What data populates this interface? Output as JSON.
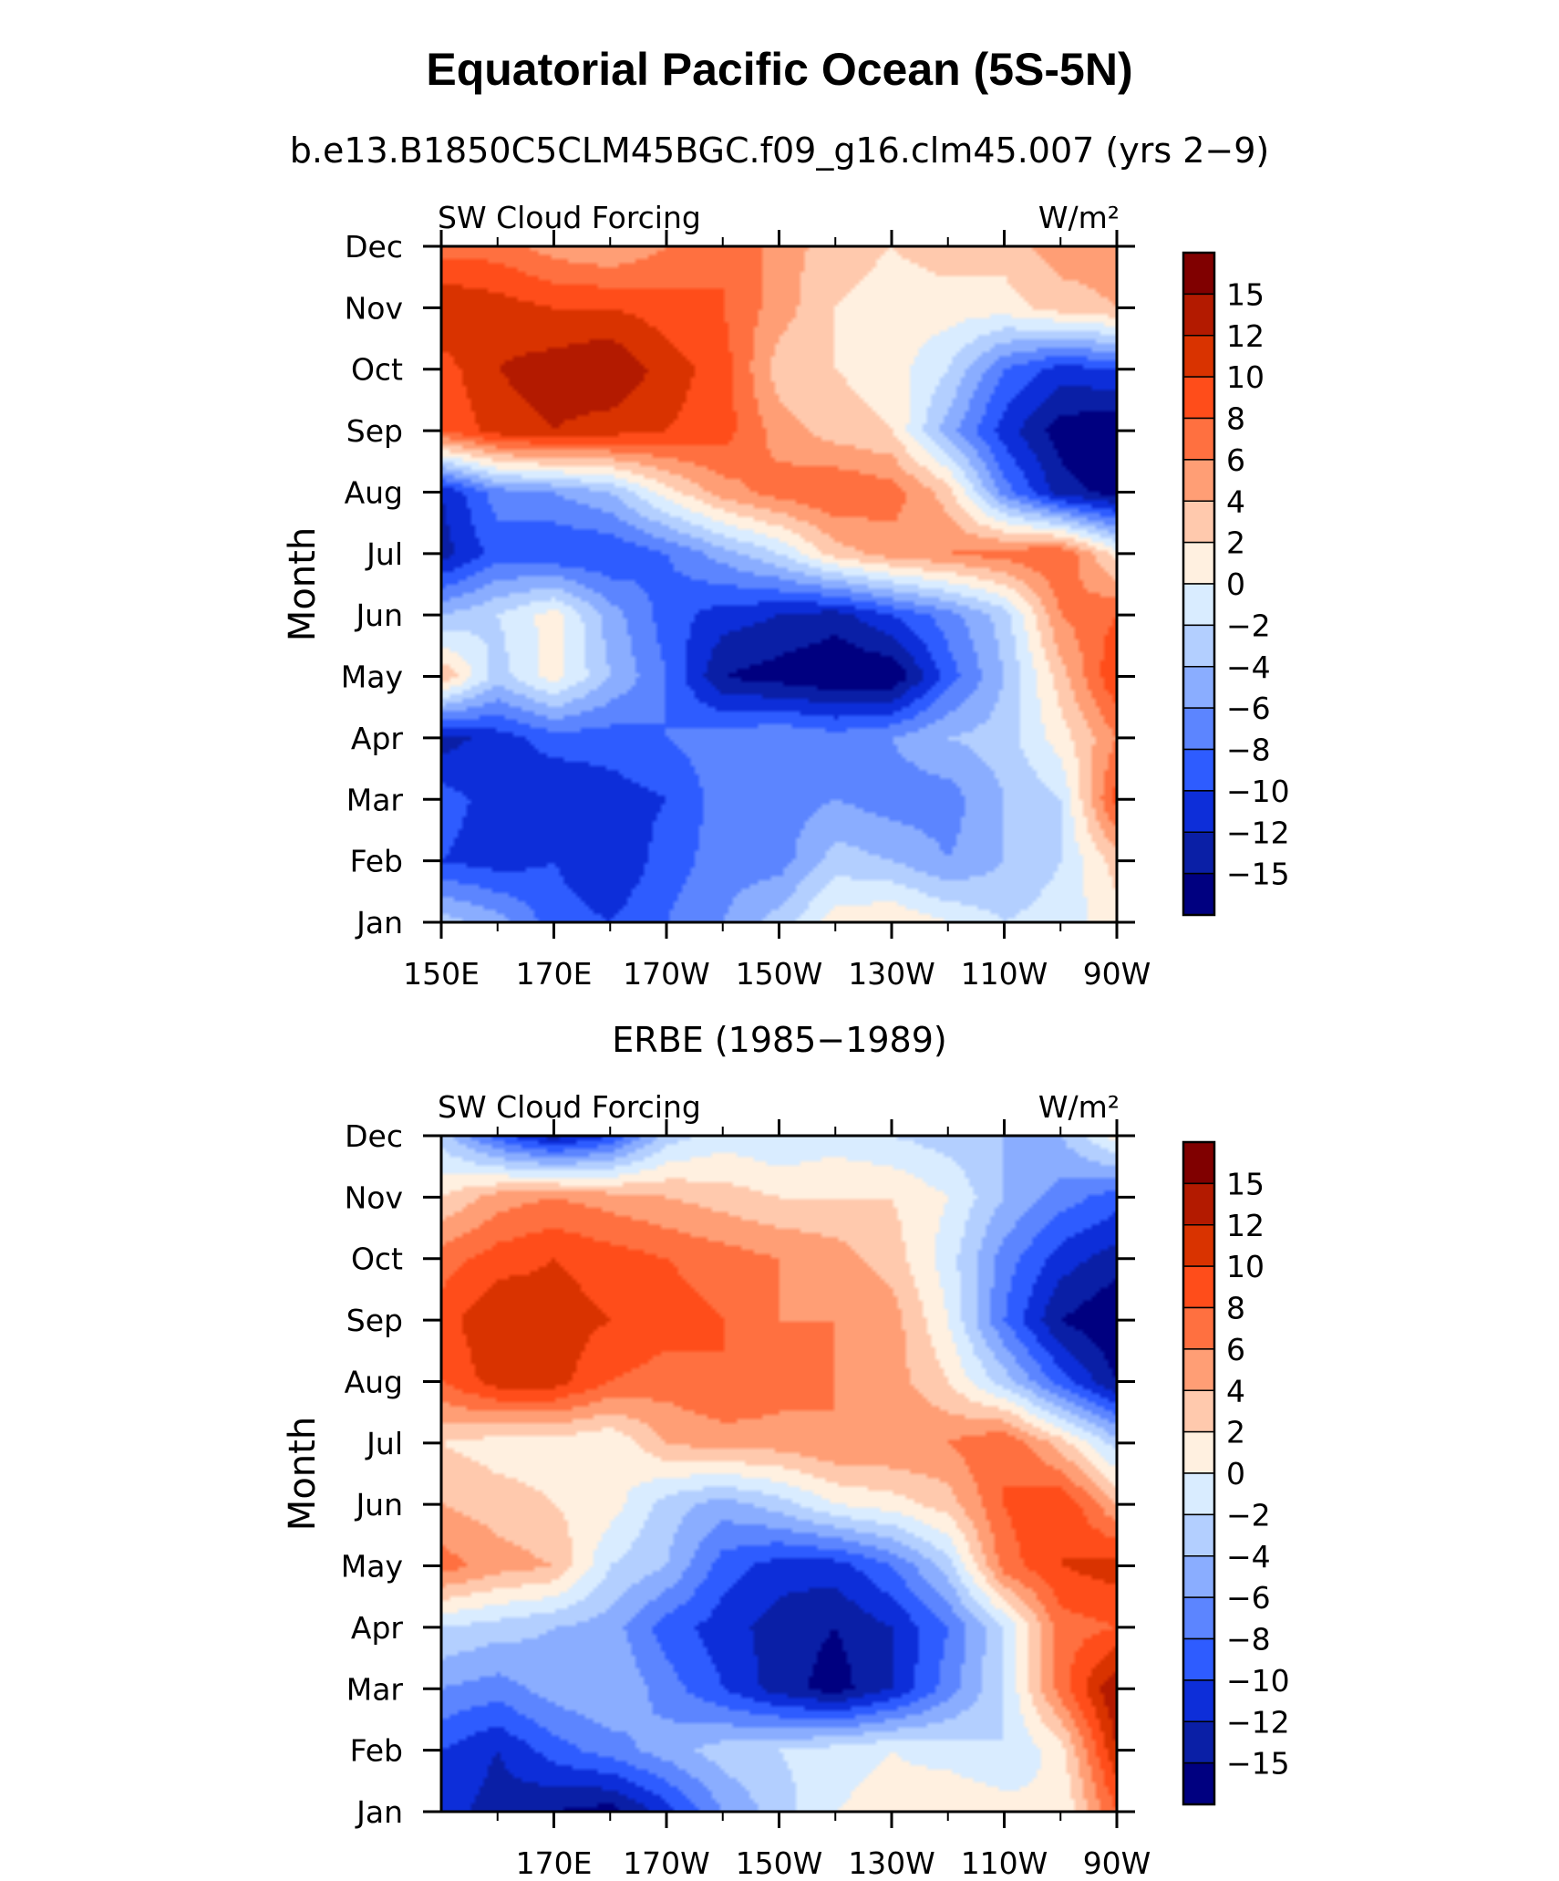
{
  "chart_data": {
    "type": "heatmap",
    "title": "Equatorial Pacific Ocean (5S-5N)",
    "colorbar": {
      "levels": [
        "15",
        "12",
        "10",
        "8",
        "6",
        "4",
        "2",
        "0",
        "−2",
        "−4",
        "−6",
        "−8",
        "−10",
        "−12",
        "−15"
      ],
      "colors": [
        "#800000",
        "#b31a00",
        "#d93300",
        "#ff4d1a",
        "#ff7040",
        "#ff9e75",
        "#ffc9ad",
        "#fff0e0",
        "#d9ecff",
        "#b3cfff",
        "#8aadff",
        "#5c85ff",
        "#2e5cff",
        "#0d2ed9",
        "#0a1fa6",
        "#000080"
      ]
    },
    "panels": [
      {
        "subtitle": "b.e13.B1850C5CLM45BGC.f09_g16.clm45.007 (yrs 2−9)",
        "left_string": "SW Cloud Forcing",
        "right_string": "W/m²",
        "ylabel": "Month",
        "months": [
          "Jan",
          "Feb",
          "Mar",
          "Apr",
          "May",
          "Jun",
          "Jul",
          "Aug",
          "Sep",
          "Oct",
          "Nov",
          "Dec"
        ],
        "x_tick_labels": [
          "150E",
          "170E",
          "170W",
          "150W",
          "130W",
          "110W",
          "90W"
        ],
        "x_range_deg": [
          150,
          270
        ],
        "field_note": "SW cloud forcing (W/m²), rows = Jan..Dec, columns = 150E..90W every 10 degrees",
        "grid": [
          [
            -2,
            -4,
            -8,
            -9,
            -7,
            -5,
            -2,
            2,
            3,
            1,
            -1,
            0,
            2
          ],
          [
            -9,
            -10,
            -9,
            -11,
            -8,
            -6,
            -6,
            -2,
            -3,
            -5,
            -3,
            -1,
            4
          ],
          [
            -8,
            -10,
            -11,
            -10,
            -9,
            -6,
            -6,
            -5,
            -6,
            -6,
            -3,
            -1,
            10
          ],
          [
            -12,
            -10,
            -8,
            -8,
            -7,
            -6,
            -5,
            -6,
            -5,
            -3,
            -2,
            2,
            7
          ],
          [
            5,
            -2,
            2,
            -3,
            -7,
            -13,
            -14,
            -15,
            -15,
            -8,
            -3,
            4,
            11
          ],
          [
            -3,
            -1,
            2,
            -4,
            -8,
            -10,
            -11,
            -12,
            -9,
            -6,
            -2,
            7,
            9
          ],
          [
            -12,
            -8,
            -9,
            -9,
            -7,
            -4,
            -1,
            4,
            6,
            7,
            8,
            9,
            2
          ],
          [
            -11,
            -6,
            -5,
            -3,
            2,
            6,
            8,
            9,
            8,
            4,
            -6,
            -12,
            -14
          ],
          [
            9,
            12,
            13,
            12,
            11,
            10,
            6,
            4,
            3,
            -4,
            -10,
            -14,
            -15
          ],
          [
            10,
            13,
            14,
            15,
            12,
            10,
            4,
            3,
            2,
            -1,
            -7,
            -10,
            -9
          ],
          [
            13,
            12,
            11,
            11,
            10,
            9,
            6,
            3,
            2,
            2,
            2,
            4,
            5
          ],
          [
            8,
            8,
            6,
            5,
            7,
            9,
            6,
            4,
            3,
            4,
            4,
            6,
            6
          ]
        ]
      },
      {
        "subtitle": "ERBE (1985−1989)",
        "left_string": "SW Cloud Forcing",
        "right_string": "W/m²",
        "ylabel": "Month",
        "months": [
          "Jan",
          "Feb",
          "Mar",
          "Apr",
          "May",
          "Jun",
          "Jul",
          "Aug",
          "Sep",
          "Oct",
          "Nov",
          "Dec"
        ],
        "x_tick_labels": [
          "170E",
          "170W",
          "150W",
          "130W",
          "110W",
          "90W"
        ],
        "x_range_deg": [
          150,
          270
        ],
        "field_note": "SW cloud forcing (W/m²), rows = Jan..Dec, columns = 150E..90W every 10 degrees",
        "grid": [
          [
            -10,
            -12,
            -13,
            -14,
            -10,
            -5,
            -2,
            1,
            2,
            3,
            2,
            1,
            9
          ],
          [
            -9,
            -11,
            -8,
            -6,
            -4,
            -2,
            -1,
            0,
            1,
            0,
            -1,
            2,
            13
          ],
          [
            -5,
            -6,
            -4,
            -3,
            -6,
            -9,
            -12,
            -14,
            -11,
            -6,
            -1,
            8,
            15
          ],
          [
            -1,
            -2,
            -3,
            -4,
            -8,
            -10,
            -12,
            -13,
            -11,
            -7,
            -1,
            8,
            9
          ],
          [
            8,
            6,
            5,
            -1,
            -3,
            -8,
            -10,
            -10,
            -7,
            -2,
            8,
            11,
            12
          ],
          [
            5,
            4,
            3,
            2,
            -2,
            -4,
            -2,
            1,
            2,
            4,
            9,
            11,
            5
          ],
          [
            3,
            2,
            2,
            1,
            5,
            6,
            6,
            7,
            7,
            7,
            9,
            4,
            -2
          ],
          [
            9,
            12,
            12,
            9,
            8,
            9,
            8,
            7,
            6,
            3,
            -2,
            -8,
            -13
          ],
          [
            10,
            13,
            12,
            11,
            10,
            9,
            7,
            7,
            6,
            1,
            -7,
            -13,
            -15
          ],
          [
            8,
            10,
            11,
            10,
            9,
            8,
            7,
            6,
            4,
            0,
            -6,
            -10,
            -12
          ],
          [
            3,
            6,
            7,
            6,
            5,
            4,
            3,
            3,
            3,
            1,
            -3,
            -6,
            -8
          ],
          [
            -2,
            -8,
            -12,
            -9,
            -2,
            0,
            -1,
            0,
            -1,
            -2,
            -3,
            -3,
            2
          ]
        ]
      }
    ]
  }
}
